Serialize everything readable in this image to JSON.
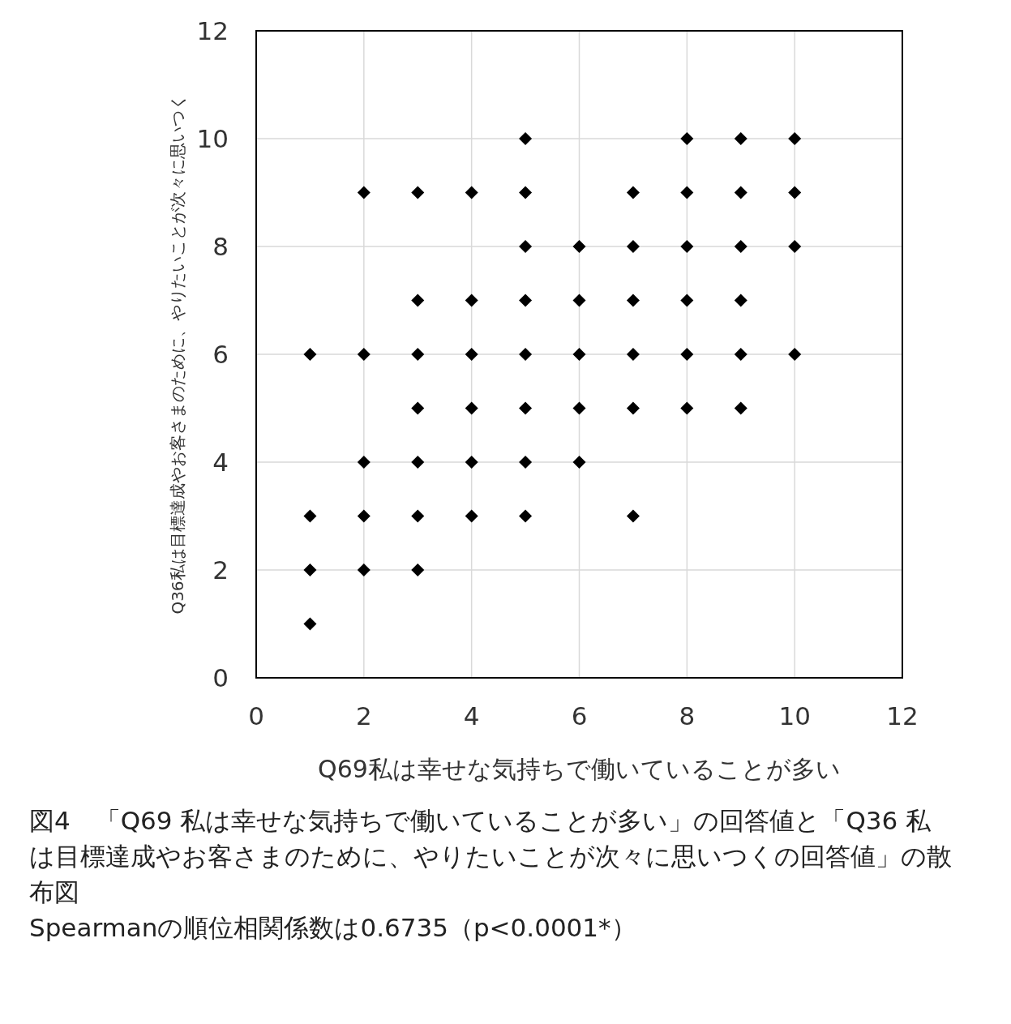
{
  "chart_data": {
    "type": "scatter",
    "xlabel": "Q69私は幸せな気持ちで働いていることが多い",
    "ylabel": "Q36私は目標達成やお客さまのために、やりたいことが次々に思いつく",
    "x": [
      1,
      1,
      1,
      1,
      2,
      2,
      2,
      2,
      2,
      3,
      3,
      3,
      3,
      3,
      3,
      3,
      4,
      4,
      4,
      4,
      4,
      4,
      5,
      5,
      5,
      5,
      5,
      5,
      5,
      5,
      6,
      6,
      6,
      6,
      6,
      7,
      7,
      7,
      7,
      7,
      7,
      8,
      8,
      8,
      8,
      8,
      8,
      9,
      9,
      9,
      9,
      9,
      9,
      10,
      10,
      10,
      10
    ],
    "series": [
      {
        "color": "#000000",
        "values": [
          6,
          3,
          2,
          1,
          9,
          6,
          4,
          3,
          2,
          9,
          7,
          6,
          5,
          4,
          3,
          2,
          9,
          7,
          6,
          5,
          4,
          3,
          10,
          9,
          8,
          7,
          6,
          5,
          4,
          3,
          8,
          7,
          6,
          5,
          4,
          9,
          8,
          7,
          6,
          5,
          3,
          10,
          9,
          8,
          7,
          6,
          5,
          10,
          9,
          8,
          7,
          6,
          5,
          10,
          9,
          8,
          6
        ]
      }
    ],
    "xlim": [
      0,
      12
    ],
    "ylim": [
      0,
      12
    ],
    "xticks": [
      0,
      2,
      4,
      6,
      8,
      10,
      12
    ],
    "yticks": [
      0,
      2,
      4,
      6,
      8,
      10,
      12
    ],
    "grid": true,
    "marker": "diamond",
    "annotations": [
      "図4　「Q69 私は幸せな気持ちで働いていることが多い」の回答値と「Q36 私は目標達成やお客さまのために、やりたいことが次々に思いつくの回答値」の散布図",
      "Spearmanの順位相関係数は0.6735（p<0.0001*）"
    ]
  }
}
